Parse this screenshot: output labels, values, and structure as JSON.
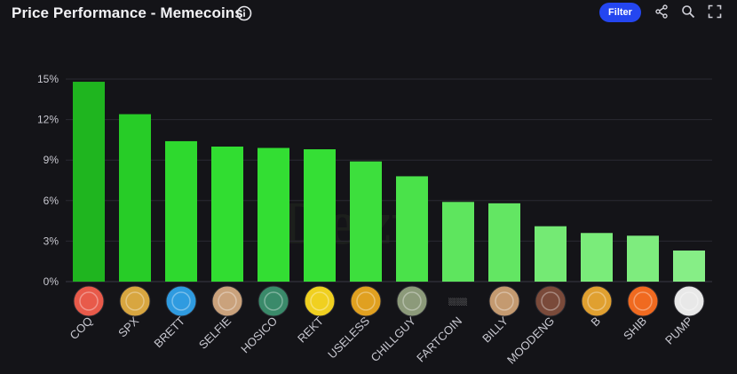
{
  "header": {
    "title": "Price Performance - Memecoins",
    "filter_label": "Filter",
    "icons": [
      "info-icon",
      "share-icon",
      "zoom-icon",
      "fullscreen-icon"
    ]
  },
  "chart_data": {
    "type": "bar",
    "categories": [
      "COQ",
      "SPX",
      "BRETT",
      "SELFIE",
      "HOSICO",
      "REKT",
      "USELESS",
      "CHILLGUY",
      "FARTCOIN",
      "BILLY",
      "MOODENG",
      "B",
      "SHIB",
      "PUMP"
    ],
    "values": [
      14.8,
      12.4,
      10.4,
      10.0,
      9.9,
      9.8,
      8.9,
      7.8,
      5.9,
      5.8,
      4.1,
      3.6,
      3.4,
      2.3
    ],
    "ylim": [
      0,
      15
    ],
    "yticks": [
      "0%",
      "3%",
      "6%",
      "9%",
      "12%",
      "15%"
    ],
    "ytick_values": [
      0,
      3,
      6,
      9,
      12,
      15
    ],
    "grid": true,
    "bar_colors": [
      "#1fb51f",
      "#27cc27",
      "#2ed92e",
      "#31dd31",
      "#33de33",
      "#35df35",
      "#3ddf3d",
      "#4ae24a",
      "#5ee55e",
      "#63e663",
      "#74ea74",
      "#7aec7a",
      "#7eec7e",
      "#86ee86"
    ],
    "icons": [
      "coq-token-icon",
      "spx-token-icon",
      "brett-token-icon",
      "selfie-token-icon",
      "hosico-token-icon",
      "rekt-token-icon",
      "useless-token-icon",
      "chillguy-token-icon",
      "fartcoin-token-icon",
      "billy-token-icon",
      "moodeng-token-icon",
      "b-token-icon",
      "shib-token-icon",
      "pump-token-icon"
    ],
    "icon_colors": [
      "#e85a4a",
      "#d8a640",
      "#2f9be0",
      "#caa27c",
      "#3a8a6a",
      "#f0d020",
      "#e0a020",
      "#8c9a7a",
      "#141418",
      "#c49a70",
      "#7a4a3a",
      "#e0a030",
      "#f06a20",
      "#e8e8e8"
    ]
  }
}
